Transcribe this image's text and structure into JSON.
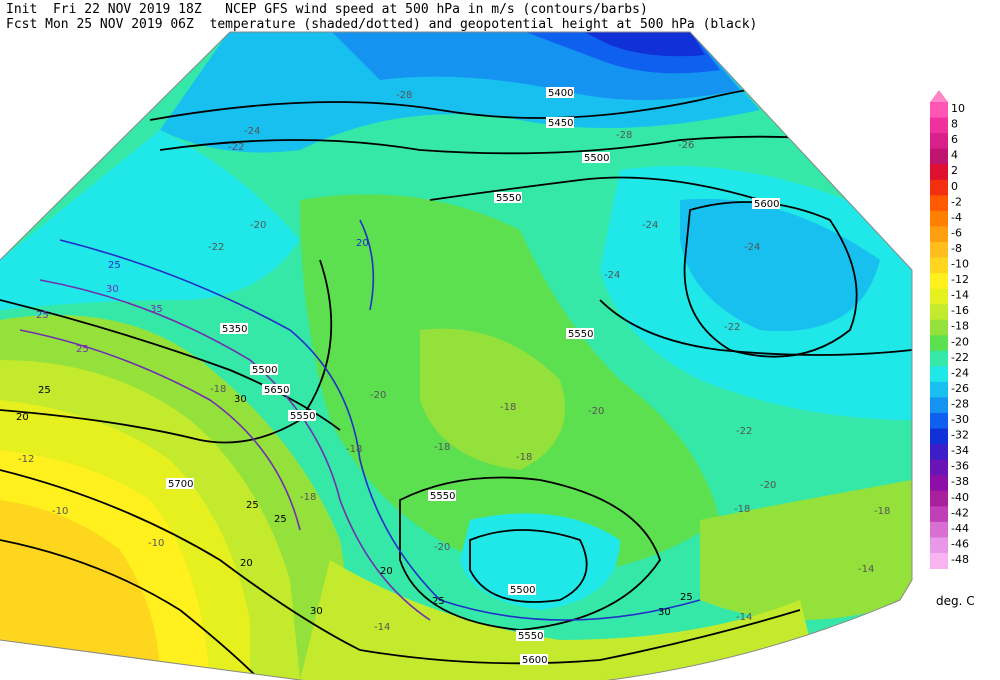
{
  "header": {
    "line1": "Init  Fri 22 NOV 2019 18Z   NCEP GFS wind speed at 500 hPa in m/s (contours/barbs)",
    "line2": "Fcst Mon 25 NOV 2019 06Z  temperature (shaded/dotted) and geopotential height at 500 hPa (black)"
  },
  "colorbar": {
    "labels": [
      "10",
      "8",
      "6",
      "4",
      "2",
      "0",
      "-2",
      "-4",
      "-6",
      "-8",
      "-10",
      "-12",
      "-14",
      "-16",
      "-18",
      "-20",
      "-22",
      "-24",
      "-26",
      "-28",
      "-30",
      "-32",
      "-34",
      "-36",
      "-38",
      "-40",
      "-42",
      "-44",
      "-46",
      "-48"
    ],
    "colors": [
      "#ff55b5",
      "#f0309c",
      "#d81f8a",
      "#c0156e",
      "#e01030",
      "#f23010",
      "#ff5a00",
      "#ff7f00",
      "#ff9f10",
      "#ffbe1e",
      "#ffd61e",
      "#fff01e",
      "#e6f01e",
      "#c3ea2d",
      "#95e13c",
      "#5ce050",
      "#35e8a8",
      "#20e8e8",
      "#18c0f0",
      "#1494f0",
      "#1060f0",
      "#1030d8",
      "#3c1ec8",
      "#6a14b8",
      "#8c10a8",
      "#a8209c",
      "#c040b8",
      "#d870d4",
      "#e898e6",
      "#f8b4f0"
    ],
    "units": "deg. C"
  },
  "map": {
    "height_contours": [
      {
        "label": "5400",
        "color": "#000000"
      },
      {
        "label": "5450",
        "color": "#000000"
      },
      {
        "label": "5500",
        "color": "#000000"
      },
      {
        "label": "5550",
        "color": "#000000"
      },
      {
        "label": "5600",
        "color": "#000000"
      },
      {
        "label": "5650",
        "color": "#000000"
      },
      {
        "label": "5700",
        "color": "#000000"
      },
      {
        "label": "5350",
        "color": "#000000"
      }
    ],
    "wind_labels": [
      "20",
      "25",
      "30",
      "35"
    ],
    "temp_labels": [
      "-28",
      "-26",
      "-24",
      "-22",
      "-20",
      "-18",
      "-16",
      "-14",
      "-12",
      "-10"
    ]
  }
}
